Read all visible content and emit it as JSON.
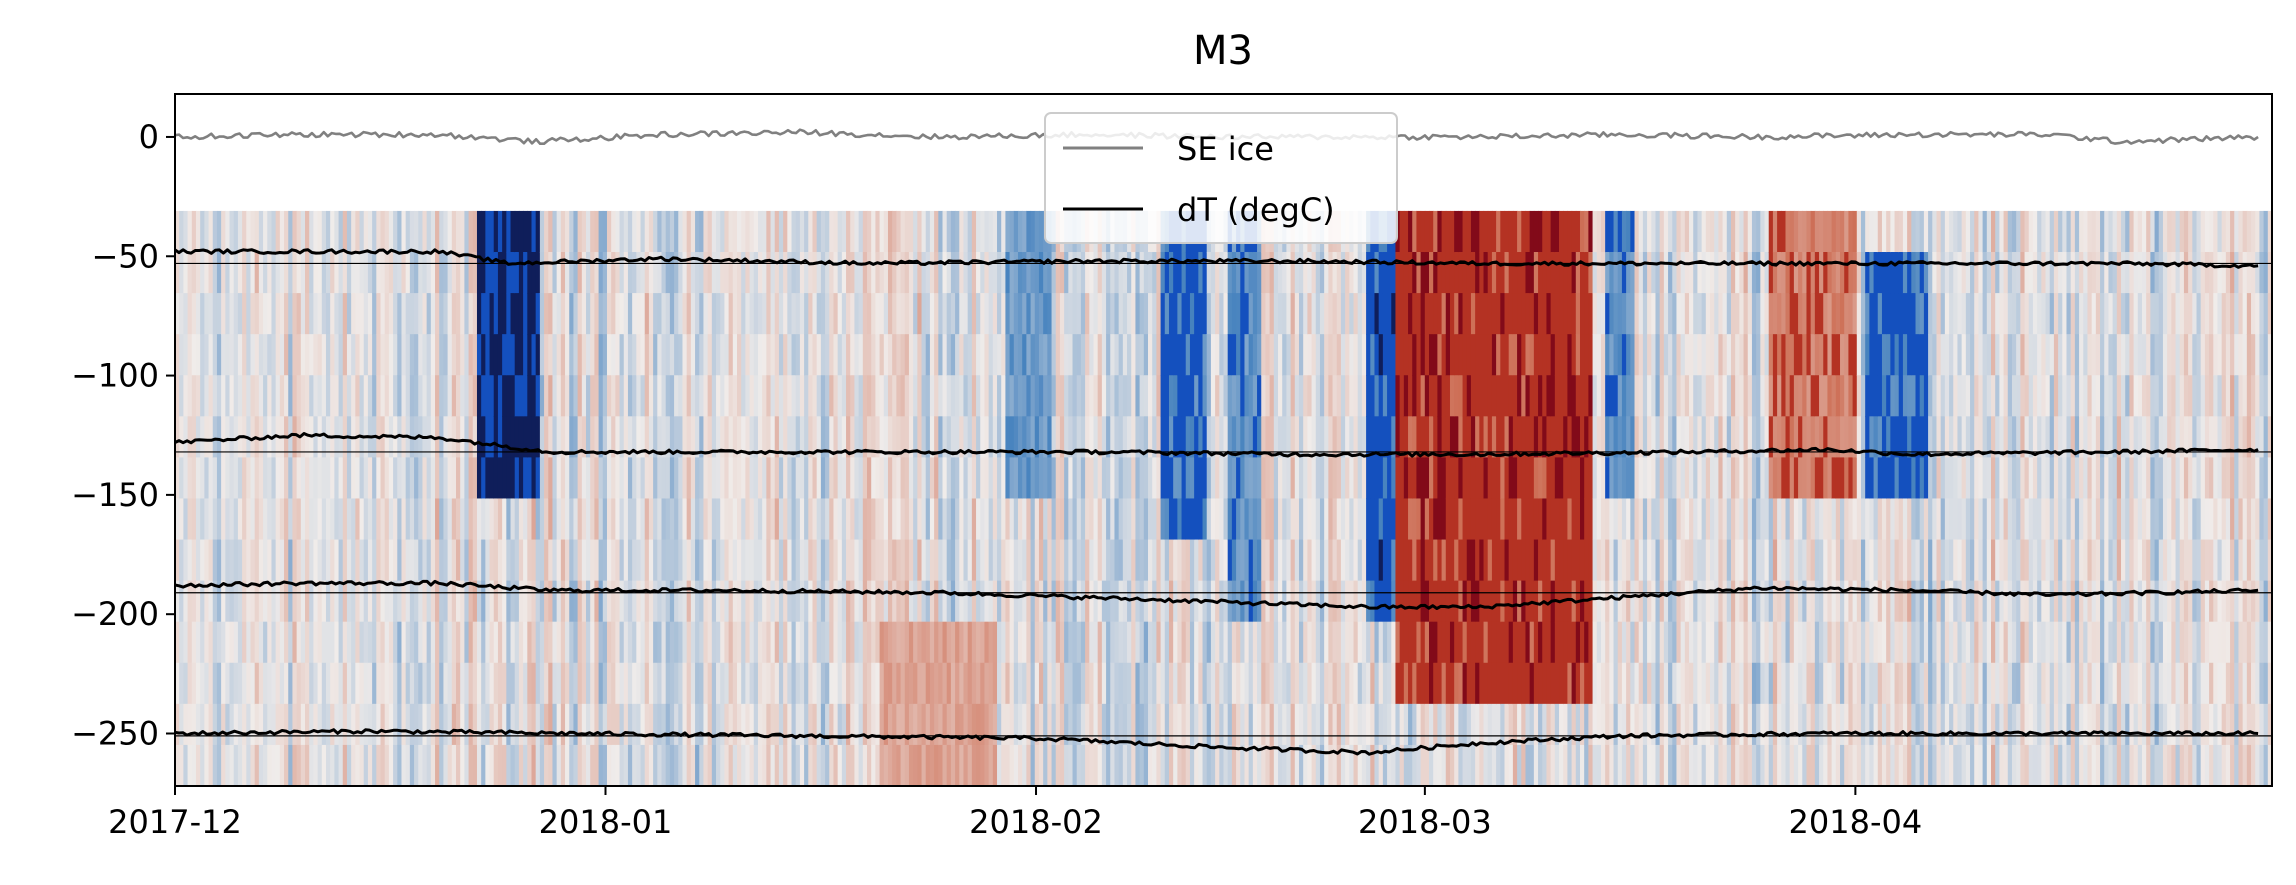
{
  "chart_data": {
    "type": "heatmap",
    "title": "M3",
    "xlabel": "",
    "ylabel": "",
    "x_ticks": [
      "2017-12",
      "2018-01",
      "2018-02",
      "2018-03",
      "2018-04"
    ],
    "x_range": [
      "2017-12-01",
      "2018-04-30"
    ],
    "y_ticks": [
      0,
      -50,
      -100,
      -150,
      -200,
      -250
    ],
    "ylim": [
      -272,
      18
    ],
    "grid": false,
    "legend_placement": "upper center",
    "colormap": "diverging blue-white-red",
    "heatmap_depth_range": [
      -31,
      -272
    ],
    "heatmap_episodes": [
      {
        "start": "2017-12-23",
        "end": "2017-12-27",
        "depth_top": -31,
        "depth_bottom": -150,
        "anomaly": -1.0
      },
      {
        "start": "2018-01-21",
        "end": "2018-01-29",
        "depth_top": -200,
        "depth_bottom": -272,
        "anomaly": 0.4
      },
      {
        "start": "2018-01-30",
        "end": "2018-02-02",
        "depth_top": -31,
        "depth_bottom": -150,
        "anomaly": -0.55
      },
      {
        "start": "2018-02-10",
        "end": "2018-02-13",
        "depth_top": -31,
        "depth_bottom": -170,
        "anomaly": -0.7
      },
      {
        "start": "2018-02-15",
        "end": "2018-02-17",
        "depth_top": -31,
        "depth_bottom": -200,
        "anomaly": -0.6
      },
      {
        "start": "2018-02-25",
        "end": "2018-02-27",
        "depth_top": -31,
        "depth_bottom": -200,
        "anomaly": -0.8
      },
      {
        "start": "2018-02-27",
        "end": "2018-03-13",
        "depth_top": -31,
        "depth_bottom": -230,
        "anomaly": 0.85
      },
      {
        "start": "2018-03-14",
        "end": "2018-03-16",
        "depth_top": -31,
        "depth_bottom": -160,
        "anomaly": -0.6
      },
      {
        "start": "2018-03-26",
        "end": "2018-04-01",
        "depth_top": -31,
        "depth_bottom": -145,
        "anomaly": 0.6
      },
      {
        "start": "2018-04-02",
        "end": "2018-04-06",
        "depth_top": -50,
        "depth_bottom": -160,
        "anomaly": -0.75
      }
    ],
    "series": [
      {
        "name": "SE ice",
        "color": "#808080",
        "x": [
          "2017-12-01",
          "2017-12-10",
          "2017-12-20",
          "2017-12-27",
          "2018-01-05",
          "2018-01-15",
          "2018-01-25",
          "2018-02-05",
          "2018-02-15",
          "2018-02-25",
          "2018-03-05",
          "2018-03-15",
          "2018-03-25",
          "2018-04-05",
          "2018-04-15",
          "2018-04-20",
          "2018-04-30"
        ],
        "y": [
          0,
          1,
          1,
          -2,
          1,
          2,
          0,
          1,
          0,
          0,
          0,
          1,
          0,
          1,
          1,
          -2,
          0
        ]
      },
      {
        "name": "dT (degC)",
        "color": "#000000",
        "x": [
          "2017-12-01",
          "2017-12-10",
          "2017-12-20",
          "2017-12-25",
          "2018-01-05",
          "2018-01-20",
          "2018-02-05",
          "2018-02-20",
          "2018-03-05",
          "2018-03-20",
          "2018-04-05",
          "2018-04-20",
          "2018-04-30"
        ],
        "y": [
          -48,
          -48,
          -48,
          -53,
          -51,
          -53,
          -52,
          -52,
          -53,
          -53,
          -53,
          -53,
          -54
        ]
      },
      {
        "name": "",
        "color": "#000000",
        "x": [
          "2017-12-01",
          "2017-12-10",
          "2017-12-20",
          "2017-12-28",
          "2018-01-05",
          "2018-01-20",
          "2018-02-05",
          "2018-02-20",
          "2018-03-05",
          "2018-03-20",
          "2018-03-30",
          "2018-04-05",
          "2018-04-20",
          "2018-04-30"
        ],
        "y": [
          -128,
          -125,
          -126,
          -132,
          -132,
          -132,
          -132,
          -133,
          -133,
          -132,
          -131,
          -133,
          -132,
          -131
        ]
      },
      {
        "name": "",
        "color": "#000000",
        "x": [
          "2017-12-01",
          "2017-12-10",
          "2017-12-20",
          "2017-12-28",
          "2018-01-10",
          "2018-01-25",
          "2018-02-10",
          "2018-02-25",
          "2018-03-05",
          "2018-03-15",
          "2018-03-25",
          "2018-04-05",
          "2018-04-15",
          "2018-04-30"
        ],
        "y": [
          -188,
          -187,
          -187,
          -190,
          -190,
          -191,
          -194,
          -197,
          -197,
          -193,
          -189,
          -190,
          -192,
          -190
        ]
      },
      {
        "name": "",
        "color": "#000000",
        "x": [
          "2017-12-01",
          "2017-12-15",
          "2017-12-30",
          "2018-01-15",
          "2018-02-01",
          "2018-02-15",
          "2018-02-25",
          "2018-03-05",
          "2018-03-15",
          "2018-03-30",
          "2018-04-15",
          "2018-04-30"
        ],
        "y": [
          -250,
          -249,
          -250,
          -251,
          -252,
          -256,
          -258,
          -254,
          -251,
          -250,
          -250,
          -250
        ]
      }
    ],
    "reference_lines_y": [
      -53,
      -132,
      -191,
      -251
    ],
    "legend": [
      {
        "label": "SE ice",
        "color": "#808080"
      },
      {
        "label": "dT (degC)",
        "color": "#000000"
      }
    ]
  }
}
